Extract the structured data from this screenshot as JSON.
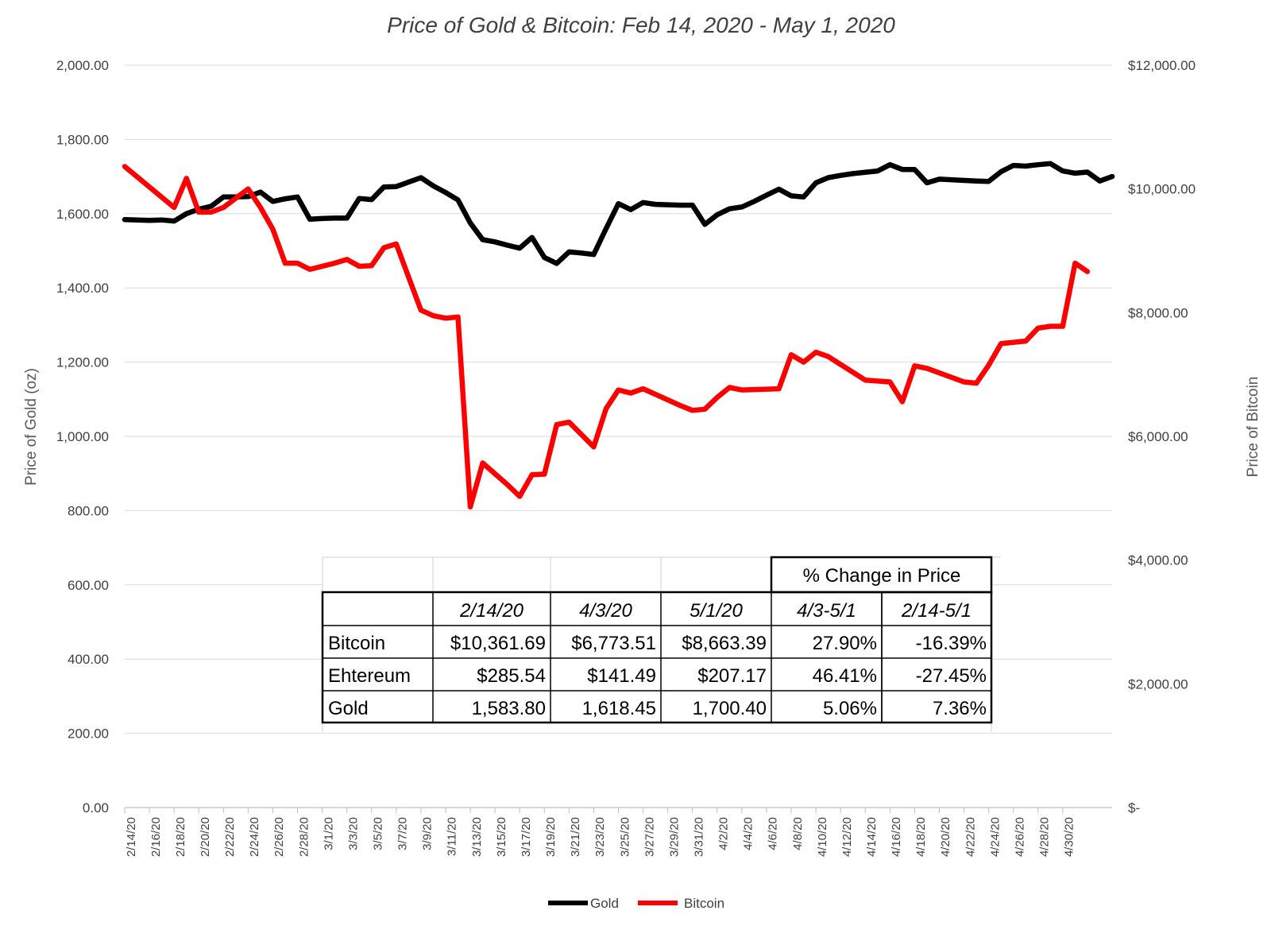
{
  "chart_data": {
    "type": "line",
    "title": "Price of Gold & Bitcoin: Feb 14, 2020 - May 1, 2020",
    "ylabel_left": "Price of Gold (oz)",
    "ylabel_right": "Price of Bitcoin",
    "ylim_left": [
      0,
      2000
    ],
    "ylim_right": [
      0,
      12000
    ],
    "yticks_left": [
      "0.00",
      "200.00",
      "400.00",
      "600.00",
      "800.00",
      "1,000.00",
      "1,200.00",
      "1,400.00",
      "1,600.00",
      "1,800.00",
      "2,000.00"
    ],
    "yticks_right": [
      "$-",
      "$2,000.00",
      "$4,000.00",
      "$6,000.00",
      "$8,000.00",
      "$10,000.00",
      "$12,000.00"
    ],
    "xticks": [
      "2/14/20",
      "2/16/20",
      "2/18/20",
      "2/20/20",
      "2/22/20",
      "2/24/20",
      "2/26/20",
      "2/28/20",
      "3/1/20",
      "3/3/20",
      "3/5/20",
      "3/7/20",
      "3/9/20",
      "3/11/20",
      "3/13/20",
      "3/15/20",
      "3/17/20",
      "3/19/20",
      "3/21/20",
      "3/23/20",
      "3/25/20",
      "3/27/20",
      "3/29/20",
      "3/31/20",
      "4/2/20",
      "4/4/20",
      "4/6/20",
      "4/8/20",
      "4/10/20",
      "4/12/20",
      "4/14/20",
      "4/16/20",
      "4/18/20",
      "4/20/20",
      "4/22/20",
      "4/24/20",
      "4/26/20",
      "4/28/20",
      "4/30/20"
    ],
    "grid": true,
    "legend_position": "bottom-center",
    "series": [
      {
        "name": "Gold",
        "axis": "left",
        "color": "#000000",
        "points": [
          [
            0,
            1584
          ],
          [
            2,
            1582
          ],
          [
            3,
            1583
          ],
          [
            4,
            1580
          ],
          [
            5,
            1600
          ],
          [
            6,
            1612
          ],
          [
            7,
            1620
          ],
          [
            8,
            1645
          ],
          [
            9,
            1645
          ],
          [
            10,
            1646
          ],
          [
            11,
            1658
          ],
          [
            12,
            1633
          ],
          [
            13,
            1640
          ],
          [
            14,
            1645
          ],
          [
            15,
            1585
          ],
          [
            16,
            1587
          ],
          [
            17,
            1588
          ],
          [
            18,
            1588
          ],
          [
            19,
            1641
          ],
          [
            20,
            1638
          ],
          [
            21,
            1672
          ],
          [
            22,
            1673
          ],
          [
            23,
            1685
          ],
          [
            24,
            1697
          ],
          [
            25,
            1675
          ],
          [
            26,
            1657
          ],
          [
            27,
            1637
          ],
          [
            28,
            1575
          ],
          [
            29,
            1530
          ],
          [
            30,
            1524
          ],
          [
            31,
            1515
          ],
          [
            32,
            1507
          ],
          [
            33,
            1536
          ],
          [
            34,
            1482
          ],
          [
            35,
            1466
          ],
          [
            36,
            1497
          ],
          [
            37,
            1494
          ],
          [
            38,
            1490
          ],
          [
            39,
            1560
          ],
          [
            40,
            1627
          ],
          [
            41,
            1611
          ],
          [
            42,
            1630
          ],
          [
            43,
            1625
          ],
          [
            45,
            1623
          ],
          [
            46,
            1623
          ],
          [
            47,
            1571
          ],
          [
            48,
            1597
          ],
          [
            49,
            1613
          ],
          [
            50,
            1618
          ],
          [
            51,
            1633
          ],
          [
            52,
            1650
          ],
          [
            53,
            1666
          ],
          [
            54,
            1648
          ],
          [
            55,
            1645
          ],
          [
            56,
            1683
          ],
          [
            57,
            1697
          ],
          [
            58,
            1703
          ],
          [
            59,
            1708
          ],
          [
            61,
            1715
          ],
          [
            62,
            1732
          ],
          [
            63,
            1719
          ],
          [
            64,
            1719
          ],
          [
            65,
            1683
          ],
          [
            66,
            1693
          ],
          [
            69,
            1688
          ],
          [
            70,
            1687
          ],
          [
            71,
            1713
          ],
          [
            72,
            1730
          ],
          [
            73,
            1728
          ],
          [
            74,
            1732
          ],
          [
            75,
            1735
          ],
          [
            76,
            1715
          ],
          [
            77,
            1709
          ],
          [
            78,
            1712
          ],
          [
            79,
            1688
          ],
          [
            80,
            1700
          ]
        ]
      },
      {
        "name": "Bitcoin",
        "axis": "right",
        "color": "#FF0000",
        "points": [
          [
            0,
            10362
          ],
          [
            4,
            9700
          ],
          [
            5,
            10170
          ],
          [
            6,
            9625
          ],
          [
            7,
            9625
          ],
          [
            8,
            9700
          ],
          [
            10,
            10000
          ],
          [
            11,
            9700
          ],
          [
            12,
            9350
          ],
          [
            13,
            8800
          ],
          [
            14,
            8800
          ],
          [
            15,
            8700
          ],
          [
            17,
            8800
          ],
          [
            18,
            8860
          ],
          [
            19,
            8750
          ],
          [
            20,
            8760
          ],
          [
            21,
            9050
          ],
          [
            22,
            9110
          ],
          [
            24,
            8040
          ],
          [
            25,
            7950
          ],
          [
            26,
            7910
          ],
          [
            27,
            7930
          ],
          [
            28,
            4860
          ],
          [
            29,
            5570
          ],
          [
            31,
            5220
          ],
          [
            32,
            5030
          ],
          [
            33,
            5380
          ],
          [
            34,
            5390
          ],
          [
            35,
            6190
          ],
          [
            36,
            6230
          ],
          [
            38,
            5830
          ],
          [
            39,
            6450
          ],
          [
            40,
            6750
          ],
          [
            41,
            6700
          ],
          [
            42,
            6770
          ],
          [
            45,
            6500
          ],
          [
            46,
            6420
          ],
          [
            47,
            6440
          ],
          [
            48,
            6630
          ],
          [
            49,
            6790
          ],
          [
            50,
            6750
          ],
          [
            53,
            6770
          ],
          [
            54,
            7320
          ],
          [
            55,
            7200
          ],
          [
            56,
            7360
          ],
          [
            57,
            7290
          ],
          [
            60,
            6910
          ],
          [
            62,
            6880
          ],
          [
            63,
            6560
          ],
          [
            64,
            7140
          ],
          [
            65,
            7100
          ],
          [
            68,
            6880
          ],
          [
            69,
            6860
          ],
          [
            70,
            7150
          ],
          [
            71,
            7500
          ],
          [
            73,
            7540
          ],
          [
            74,
            7750
          ],
          [
            75,
            7780
          ],
          [
            76,
            7780
          ],
          [
            77,
            8800
          ],
          [
            78,
            8663
          ]
        ]
      }
    ],
    "summary_table": {
      "group_header": "% Change in Price",
      "columns": [
        "",
        "2/14/20",
        "4/3/20",
        "5/1/20",
        "4/3-5/1",
        "2/14-5/1"
      ],
      "rows": [
        [
          "Bitcoin",
          "$10,361.69",
          "$6,773.51",
          "$8,663.39",
          "27.90%",
          "-16.39%"
        ],
        [
          "Ehtereum",
          "$285.54",
          "$141.49",
          "$207.17",
          "46.41%",
          "-27.45%"
        ],
        [
          "Gold",
          "1,583.80",
          "1,618.45",
          "1,700.40",
          "5.06%",
          "7.36%"
        ]
      ]
    }
  }
}
